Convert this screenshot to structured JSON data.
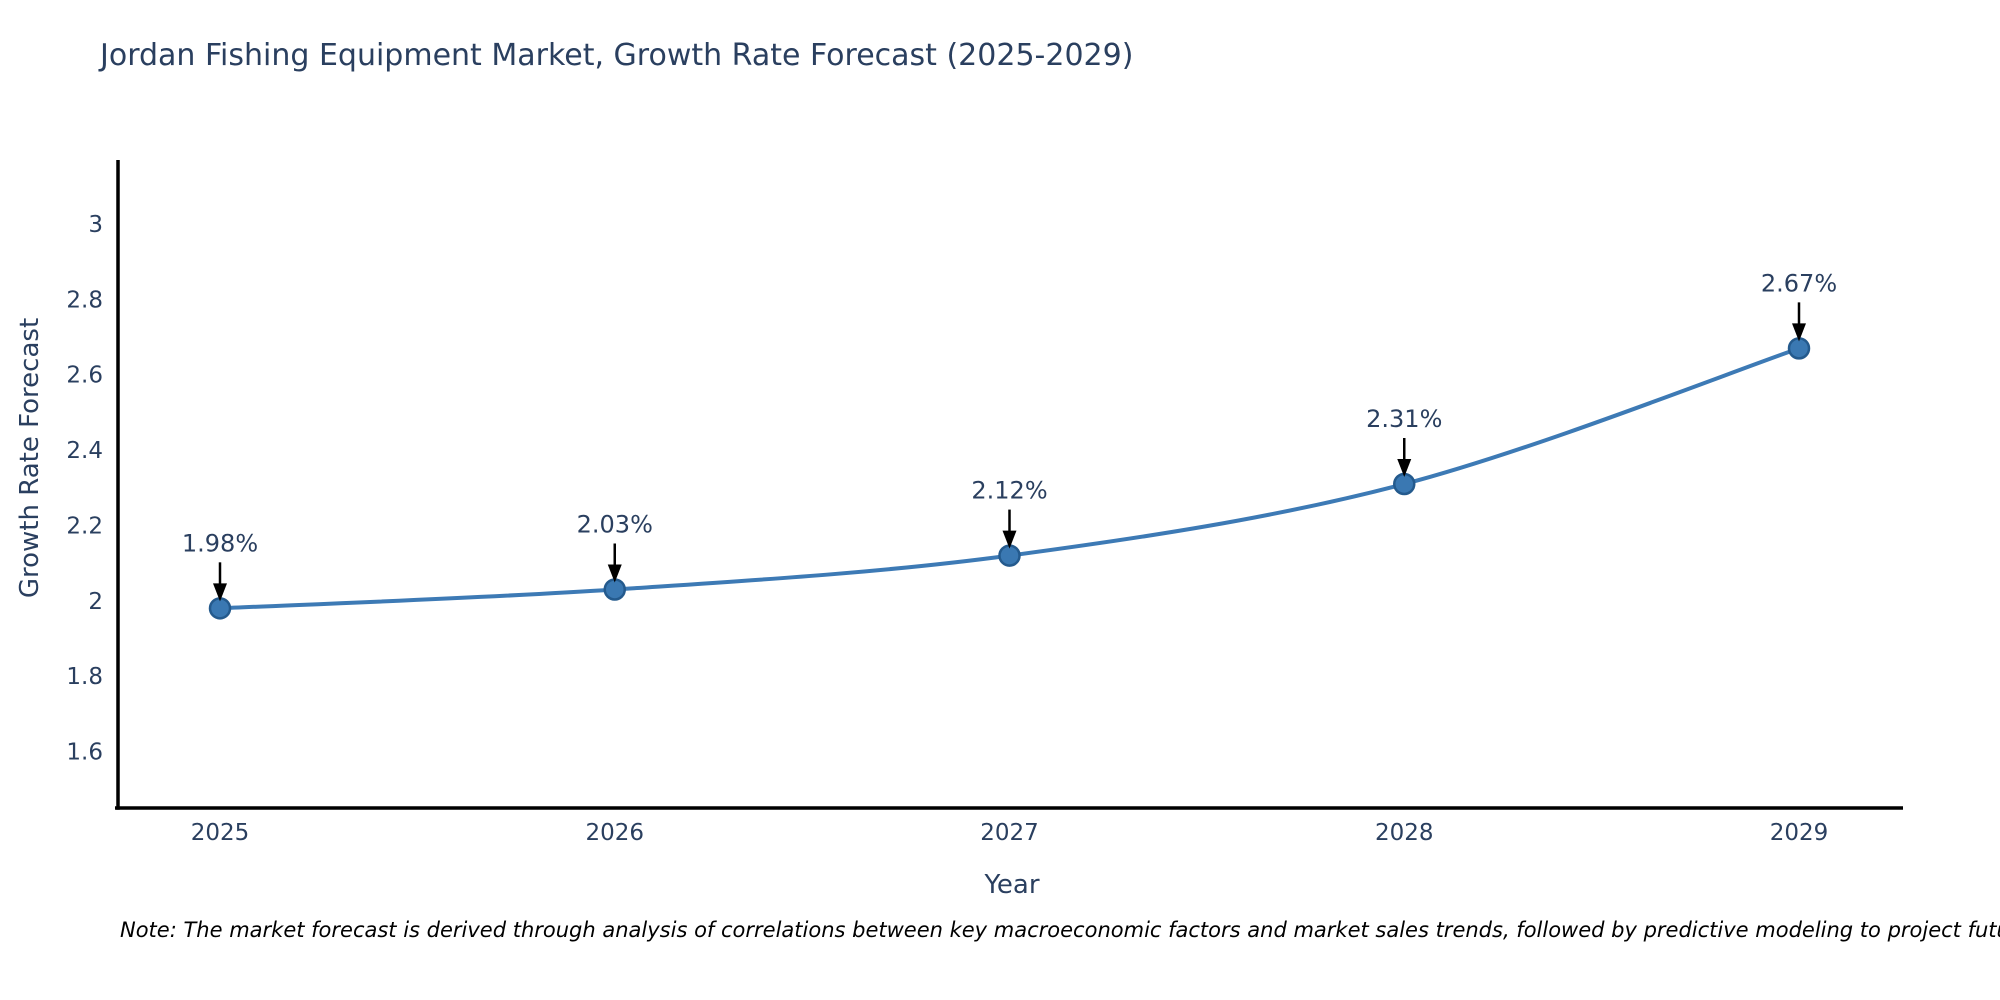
{
  "note": "Note: The market forecast is derived through analysis of correlations between key macroeconomic factors and market sales trends, followed by predictive modeling to project future sales",
  "chart_data": {
    "type": "line",
    "title": "Jordan Fishing Equipment Market, Growth Rate Forecast (2025-2029)",
    "xlabel": "Year",
    "ylabel": "Growth Rate Forecast",
    "categories": [
      "2025",
      "2026",
      "2027",
      "2028",
      "2029"
    ],
    "values": [
      1.98,
      2.03,
      2.12,
      2.31,
      2.67
    ],
    "point_labels": [
      "1.98%",
      "2.03%",
      "2.12%",
      "2.31%",
      "2.67%"
    ],
    "ytick_labels": [
      "1.6",
      "1.8",
      "2",
      "2.2",
      "2.4",
      "2.6",
      "2.8",
      "3"
    ],
    "ytick_values": [
      1.6,
      1.8,
      2.0,
      2.2,
      2.4,
      2.6,
      2.8,
      3.0
    ],
    "ylim": [
      1.45,
      3.17
    ],
    "line_shape": "spline",
    "grid": false,
    "legend": "none",
    "colors": {
      "line": "#3d7ab5",
      "marker_fill": "#3a78b2",
      "marker_edge": "#245a8d",
      "annotation_arrow": "#000000",
      "axis": "#000000",
      "text": "#2a3f5f",
      "note_text": "#000000"
    }
  }
}
